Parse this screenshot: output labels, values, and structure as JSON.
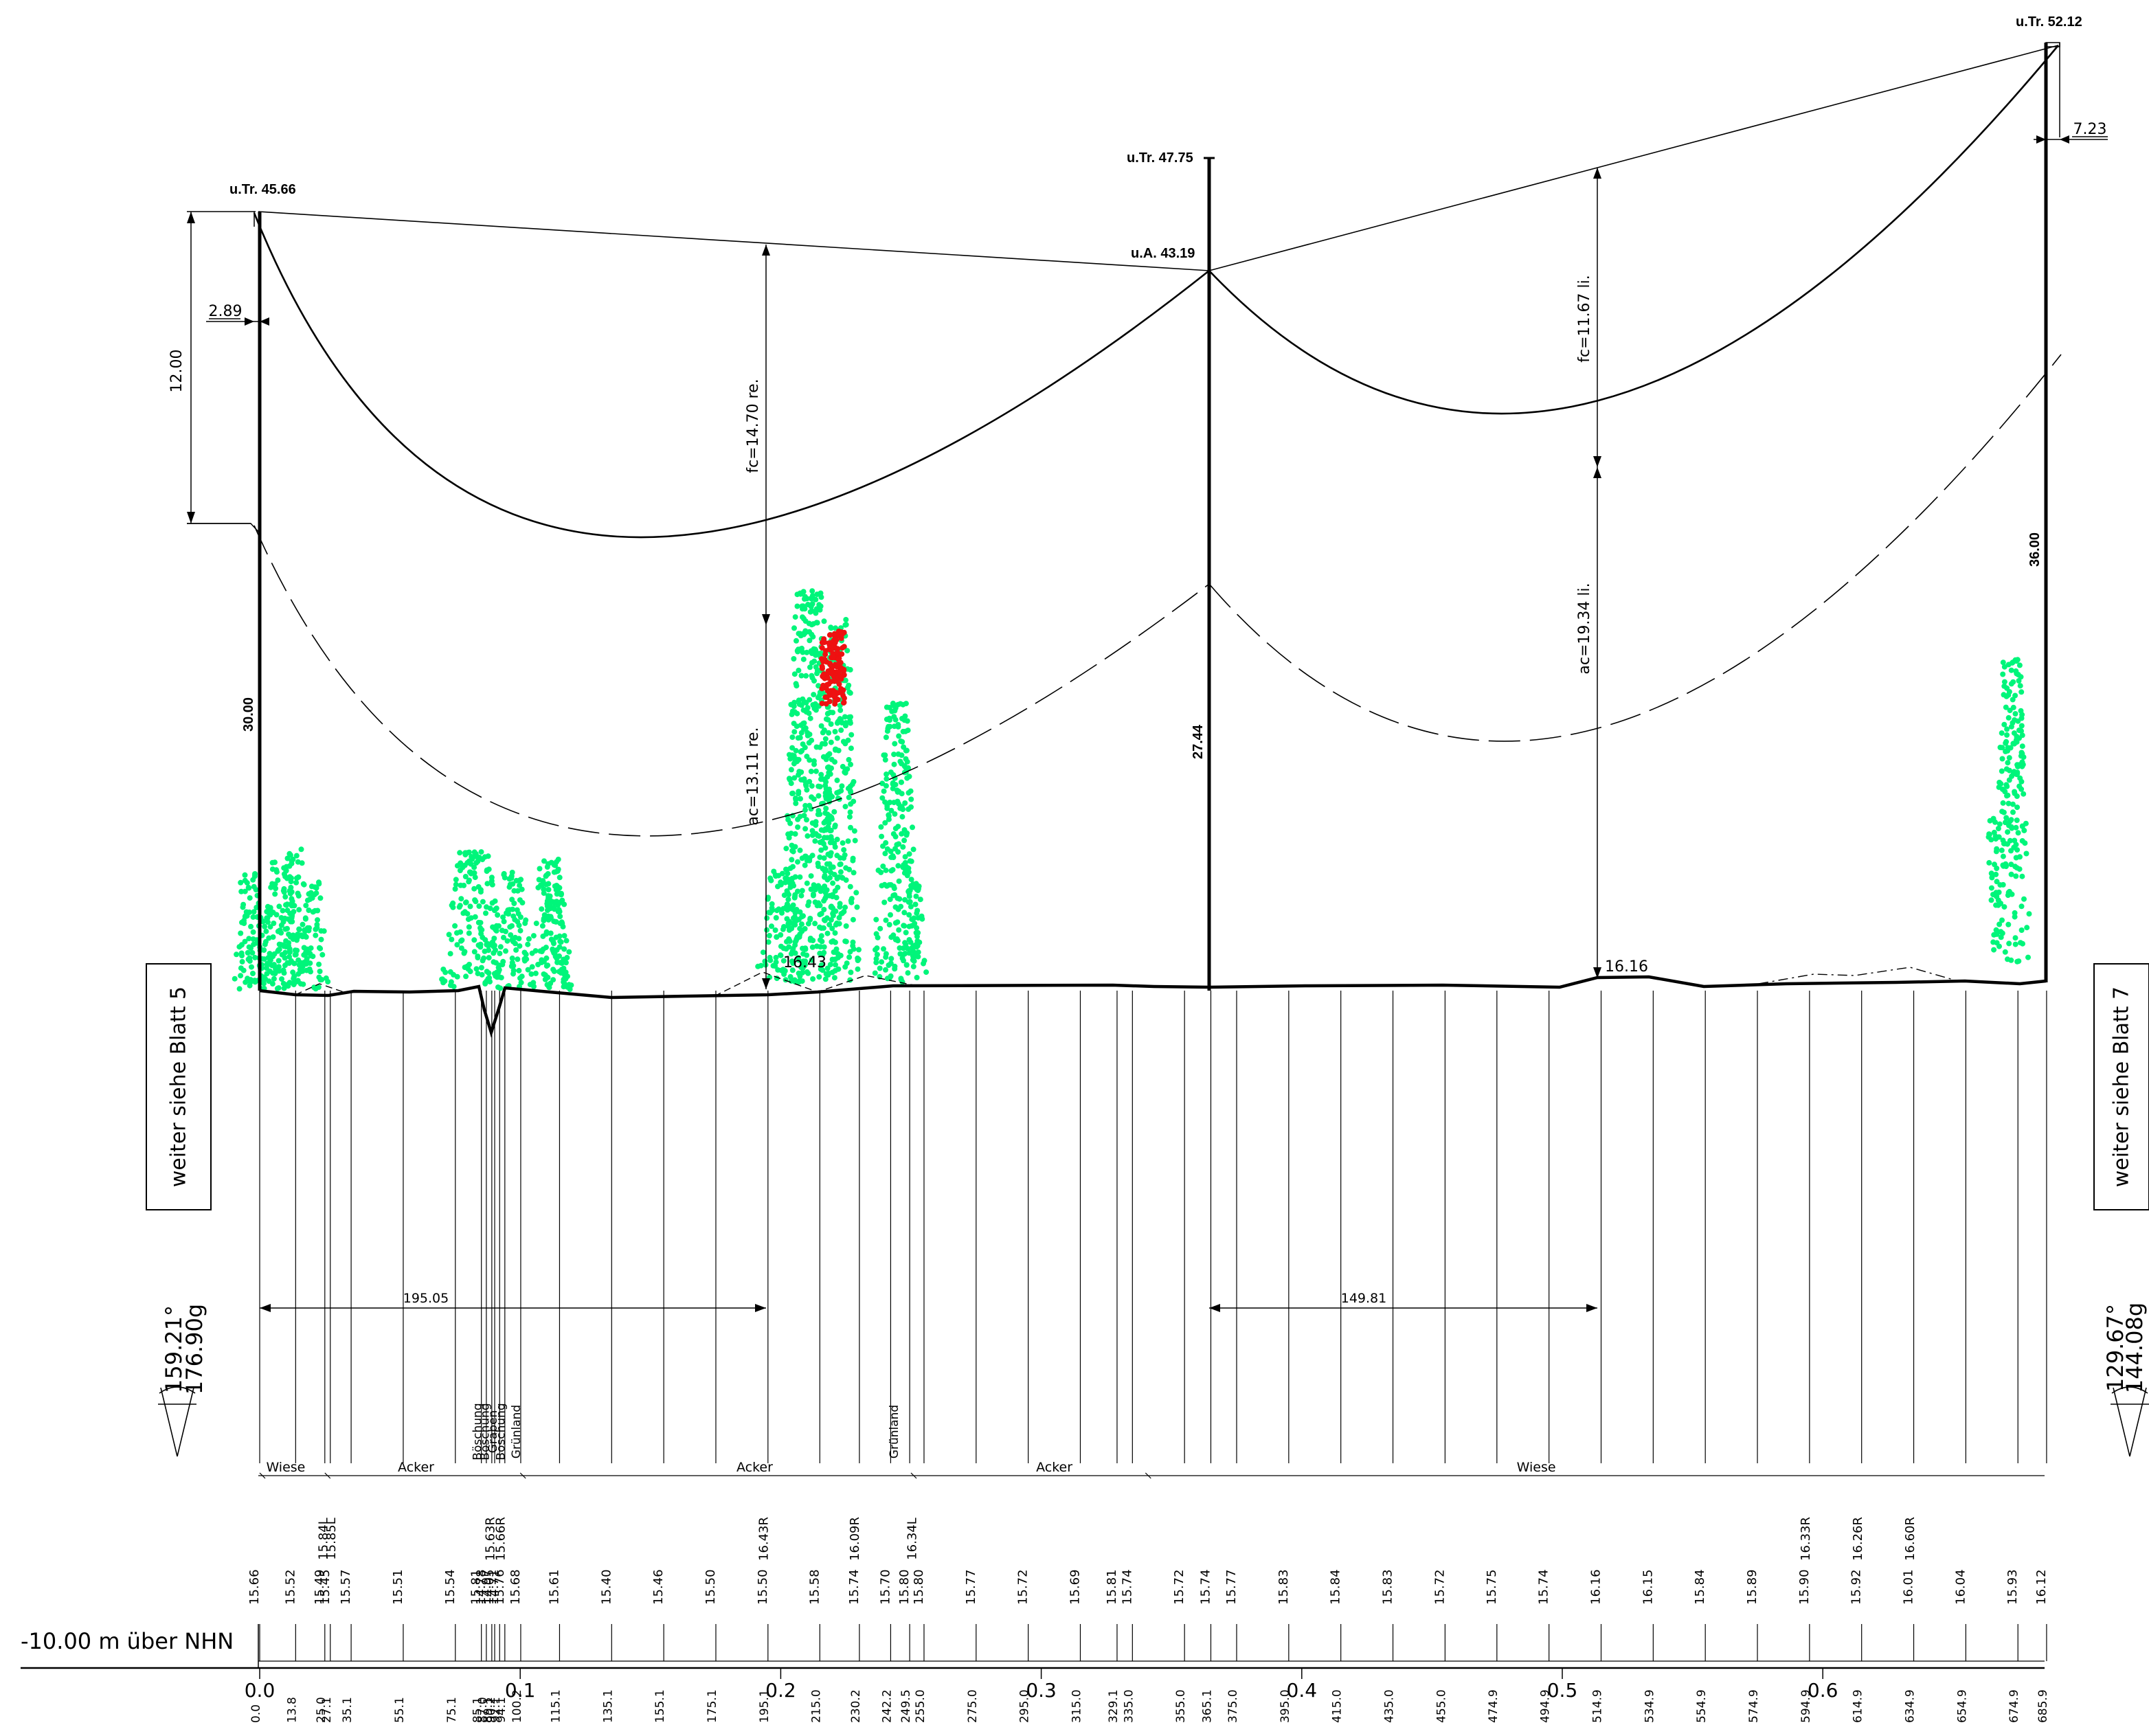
{
  "towers": {
    "left": {
      "label": "u.Tr. 45.66",
      "height": "30.00",
      "offset": "2.89",
      "dim": "12.00"
    },
    "middle": {
      "label": "u.Tr. 47.75",
      "sub": "u.A. 43.19",
      "height": "27.44"
    },
    "right": {
      "label": "u.Tr. 52.12",
      "height": "36.00",
      "offset": "7.23"
    }
  },
  "span1": {
    "fc": "fc=14.70 re.",
    "ac": "ac=13.11 re.",
    "ground": "16.43",
    "length": "195.05",
    "angle_deg": "159.21°",
    "angle_gon": "176.90g"
  },
  "span2": {
    "fc": "fc=11.67 li.",
    "ac": "ac=19.34 li.",
    "ground": "16.16",
    "length": "149.81",
    "angle_deg": "129.67°",
    "angle_gon": "144.08g"
  },
  "sheets": {
    "left": "weiter siehe Blatt 5",
    "right": "weiter siehe Blatt 7"
  },
  "datum_label": "-10.00 m über NHN",
  "land_use": [
    {
      "label": "Wiese",
      "km": 0.0
    },
    {
      "label": "Acker",
      "km": 0.025
    },
    {
      "label": "Acker",
      "km": 0.1
    },
    {
      "label": "Acker",
      "km": 0.25
    },
    {
      "label": "Wiese",
      "km": 0.34
    }
  ],
  "vertical_notes": [
    {
      "label": "Böschung",
      "km": 0.085
    },
    {
      "label": "Böschung",
      "km": 0.088
    },
    {
      "label": "Graben",
      "km": 0.091
    },
    {
      "label": "Böschung",
      "km": 0.094
    },
    {
      "label": "Grünland",
      "km": 0.1
    },
    {
      "label": "Grünland",
      "km": 0.245
    }
  ],
  "crossings": [
    {
      "label": "15.84L",
      "km": 0.026
    },
    {
      "label": "15.85L",
      "km": 0.029
    },
    {
      "label": "15.63R",
      "km": 0.09
    },
    {
      "label": "15.66R",
      "km": 0.094
    },
    {
      "label": "16.43R",
      "km": 0.195
    },
    {
      "label": "16.09R",
      "km": 0.23
    },
    {
      "label": "16.34L",
      "km": 0.252
    },
    {
      "label": "16.33R",
      "km": 0.595
    },
    {
      "label": "16.26R",
      "km": 0.615
    },
    {
      "label": "16.60R",
      "km": 0.635
    }
  ],
  "elevations": [
    "15.66",
    "15.52",
    "15.49",
    "15.45",
    "15.57",
    "15.51",
    "15.54",
    "15.81",
    "14.78",
    "14.97",
    "14.05",
    "14.71",
    "15.76",
    "15.68",
    "15.61",
    "15.40",
    "15.46",
    "15.50",
    "15.50",
    "15.58",
    "15.74",
    "15.70",
    "15.80",
    "15.80",
    "15.77",
    "15.72",
    "15.69",
    "15.81",
    "15.74",
    "15.72",
    "15.74",
    "15.77",
    "15.83",
    "15.84",
    "15.83",
    "15.72",
    "15.75",
    "15.74",
    "16.16",
    "16.15",
    "15.84",
    "15.89",
    "15.90",
    "15.92",
    "16.01",
    "16.04",
    "15.93",
    "16.12"
  ],
  "stations": [
    "0.0",
    "13.8",
    "25.0",
    "27.1",
    "35.1",
    "55.1",
    "75.1",
    "85.1",
    "87.0",
    "89.1",
    "90.2",
    "92.1",
    "94.1",
    "100.2",
    "115.1",
    "135.1",
    "155.1",
    "175.1",
    "195.1",
    "215.0",
    "230.2",
    "242.2",
    "249.5",
    "255.0",
    "275.0",
    "295.0",
    "315.0",
    "329.1",
    "335.0",
    "355.0",
    "365.1",
    "375.0",
    "395.0",
    "415.0",
    "435.0",
    "455.0",
    "474.9",
    "494.9",
    "514.9",
    "534.9",
    "554.9",
    "574.9",
    "594.9",
    "614.9",
    "634.9",
    "654.9",
    "674.9",
    "685.9"
  ],
  "km_ticks": [
    "0.0",
    "0.1",
    "0.2",
    "0.3",
    "0.4",
    "0.5",
    "0.6"
  ],
  "colors": {
    "ink": "#000000",
    "vegetation": "#00f57a",
    "violation": "#ee1111"
  }
}
